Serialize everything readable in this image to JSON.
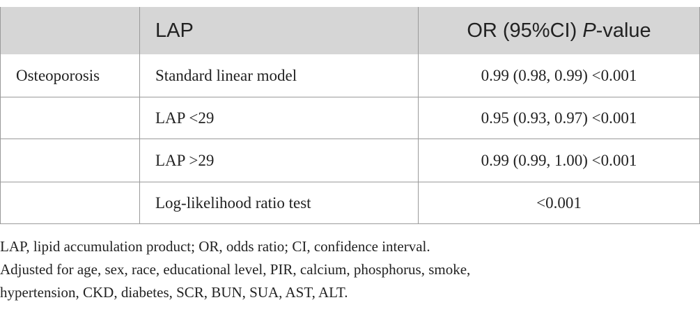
{
  "table": {
    "header": {
      "columns": [
        "LAP",
        {
          "prefix": "OR (95%CI) ",
          "italic": "P",
          "suffix": "-value"
        }
      ]
    },
    "group": "Osteoporosis",
    "rows": [
      [
        "Standard linear model",
        "0.99 (0.98, 0.99) <0.001"
      ],
      [
        "LAP <29",
        "0.95 (0.93, 0.97) <0.001"
      ],
      [
        "LAP >29",
        "0.99 (0.99, 1.00) <0.001"
      ],
      [
        "Log-likelihood ratio test",
        "<0.001"
      ]
    ]
  },
  "notes": [
    "LAP, lipid accumulation product; OR, odds ratio; CI, confidence interval.",
    "Adjusted for age, sex, race, educational level, PIR, calcium, phosphorus, smoke,",
    "hypertension, CKD, diabetes, SCR, BUN, SUA, AST, ALT."
  ]
}
